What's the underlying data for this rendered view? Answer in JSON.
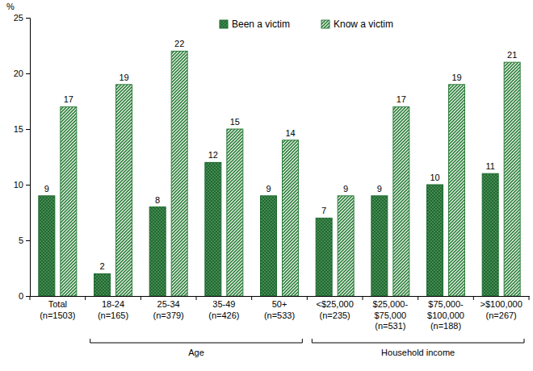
{
  "chart_data": {
    "type": "bar",
    "y_label": "%",
    "categories": [
      "Total\n(n=1503)",
      "18-24\n(n=165)",
      "25-34\n(n=379)",
      "35-49\n(n=426)",
      "50+\n(n=533)",
      "<$25,000\n(n=235)",
      "$25,000-\n$75,000\n(n=531)",
      "$75,000-\n$100,000\n(n=188)",
      ">$100,000\n(n=267)"
    ],
    "series": [
      {
        "name": "Been a victim",
        "color": "#1f6b2f",
        "values": [
          9,
          2,
          8,
          12,
          9,
          7,
          9,
          10,
          11
        ]
      },
      {
        "name": "Know a victim",
        "color": "#2d7f3a",
        "values": [
          17,
          19,
          22,
          15,
          14,
          9,
          17,
          19,
          21
        ]
      }
    ],
    "groups": [
      {
        "label": "Age",
        "start": 1,
        "end": 4
      },
      {
        "label": "Household income",
        "start": 5,
        "end": 8
      }
    ],
    "ylim": [
      0,
      25
    ],
    "yticks": [
      0,
      5,
      10,
      15,
      20,
      25
    ],
    "grid": false,
    "legend": "top",
    "data_labels": true
  }
}
